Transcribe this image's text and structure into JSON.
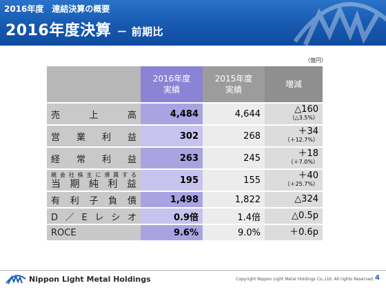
{
  "header": {
    "section_title": "2016年度　連結決算の概要",
    "slide_title": "2016年度決算",
    "slide_subtitle": "－ 前期比"
  },
  "table": {
    "unit": "（億円）",
    "columns": {
      "current": "2016年度\n実績",
      "previous": "2015年度\n実績",
      "change": "増減"
    },
    "rows": [
      {
        "label": "売上高",
        "current": "4,484",
        "previous": "4,644",
        "change": "△160",
        "change_pct": "（△3.5%）"
      },
      {
        "label": "営業利益",
        "current": "302",
        "previous": "268",
        "change": "＋34",
        "change_pct": "（＋12.7%）"
      },
      {
        "label": "経常利益",
        "current": "263",
        "previous": "245",
        "change": "＋18",
        "change_pct": "（＋7.0%）"
      },
      {
        "label_line1": "親会社株主に帰属する",
        "label_line2": "当期純利益",
        "current": "195",
        "previous": "155",
        "change": "＋40",
        "change_pct": "（＋25.7%）"
      },
      {
        "label": "有利子負債",
        "current": "1,498",
        "previous": "1,822",
        "change": "△324"
      },
      {
        "label": "D／Eレシオ",
        "current": "0.9倍",
        "previous": "1.4倍",
        "change": "△0.5p"
      },
      {
        "label": "ROCE",
        "current": "9.6%",
        "previous": "9.0%",
        "change": "＋0.6p"
      }
    ]
  },
  "footer": {
    "company": "Nippon Light Metal Holdings",
    "copyright": "Copyright Nippon Light Metal Holdings Co.,Ltd. All rights Reserved.",
    "page": "4"
  },
  "colors": {
    "banner": "#1758b0",
    "current_column": "#8b83d6",
    "label_column": "#c9c9c9"
  },
  "icons": {
    "banner_logo": "nlm-logo-watermark",
    "footer_logo": "nlm-logo-icon"
  }
}
